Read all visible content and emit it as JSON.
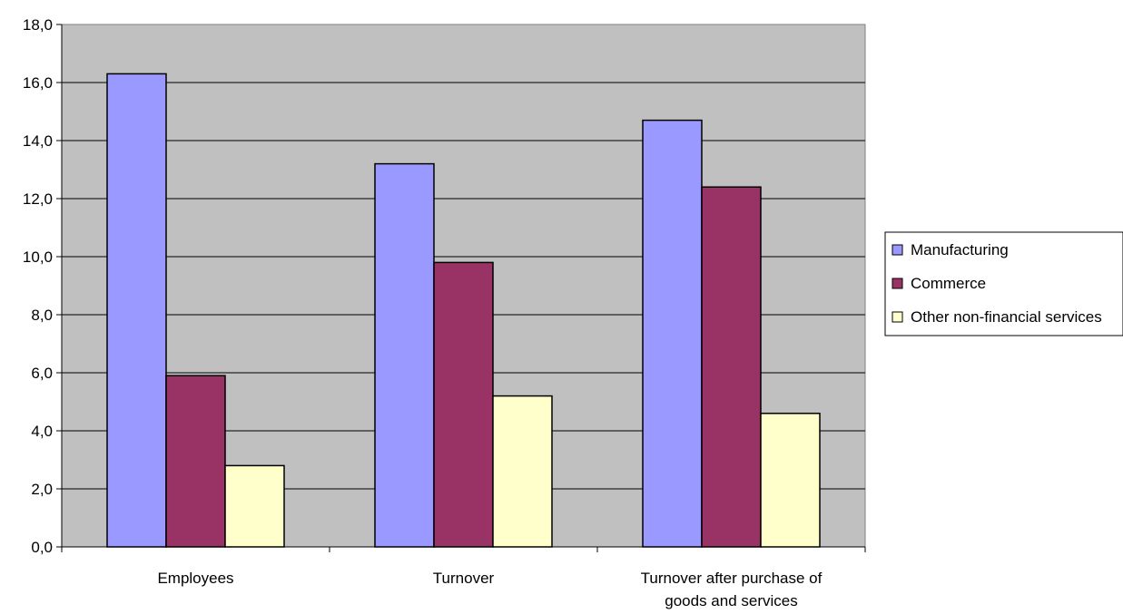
{
  "chart_data": {
    "type": "bar",
    "categories": [
      "Employees",
      "Turnover",
      "Turnover after purchase of goods and services"
    ],
    "category_lines": [
      [
        "Employees"
      ],
      [
        "Turnover"
      ],
      [
        "Turnover after purchase of",
        "goods and services"
      ]
    ],
    "series": [
      {
        "name": "Manufacturing",
        "values": [
          16.3,
          13.2,
          14.7
        ],
        "color": "#9999ff"
      },
      {
        "name": "Commerce",
        "values": [
          5.9,
          9.8,
          12.4
        ],
        "color": "#993366"
      },
      {
        "name": "Other non-financial services",
        "values": [
          2.8,
          5.2,
          4.6
        ],
        "color": "#ffffcc"
      }
    ],
    "ylim": [
      0,
      18
    ],
    "y_ticks": [
      "0,0",
      "2,0",
      "4,0",
      "6,0",
      "8,0",
      "10,0",
      "12,0",
      "14,0",
      "16,0",
      "18,0"
    ],
    "grid": true,
    "plot_background": "#c0c0c0",
    "legend_position": "right",
    "title": "",
    "xlabel": "",
    "ylabel": ""
  }
}
